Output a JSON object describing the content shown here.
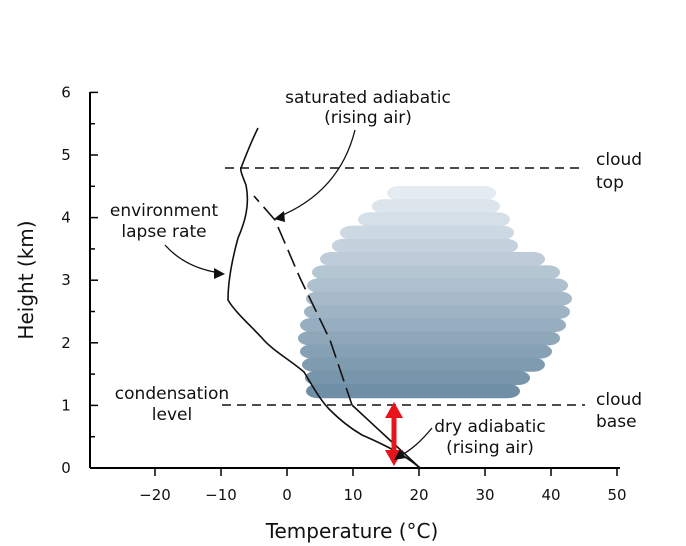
{
  "diagram": {
    "axes": {
      "y_label": "Height (km)",
      "x_label": "Temperature (°C)",
      "y_ticks": [
        "0",
        "1",
        "2",
        "3",
        "4",
        "5",
        "6"
      ],
      "x_ticks": [
        "−20",
        "−10",
        "0",
        "10",
        "20",
        "30",
        "40",
        "50"
      ]
    },
    "labels": {
      "saturated_line1": "saturated adiabatic",
      "saturated_line2": "(rising air)",
      "environment_line1": "environment",
      "environment_line2": "lapse rate",
      "condensation_line1": "condensation",
      "condensation_line2": "level",
      "dry_line1": "dry adiabatic",
      "dry_line2": "(rising air)",
      "cloud_top_line1": "cloud",
      "cloud_top_line2": "top",
      "cloud_base_line1": "cloud",
      "cloud_base_line2": "base"
    },
    "colors": {
      "cloud_top": "#e4ebf1",
      "cloud_bottom": "#6f8fa6",
      "dry_arrow": "#e8141b"
    }
  }
}
